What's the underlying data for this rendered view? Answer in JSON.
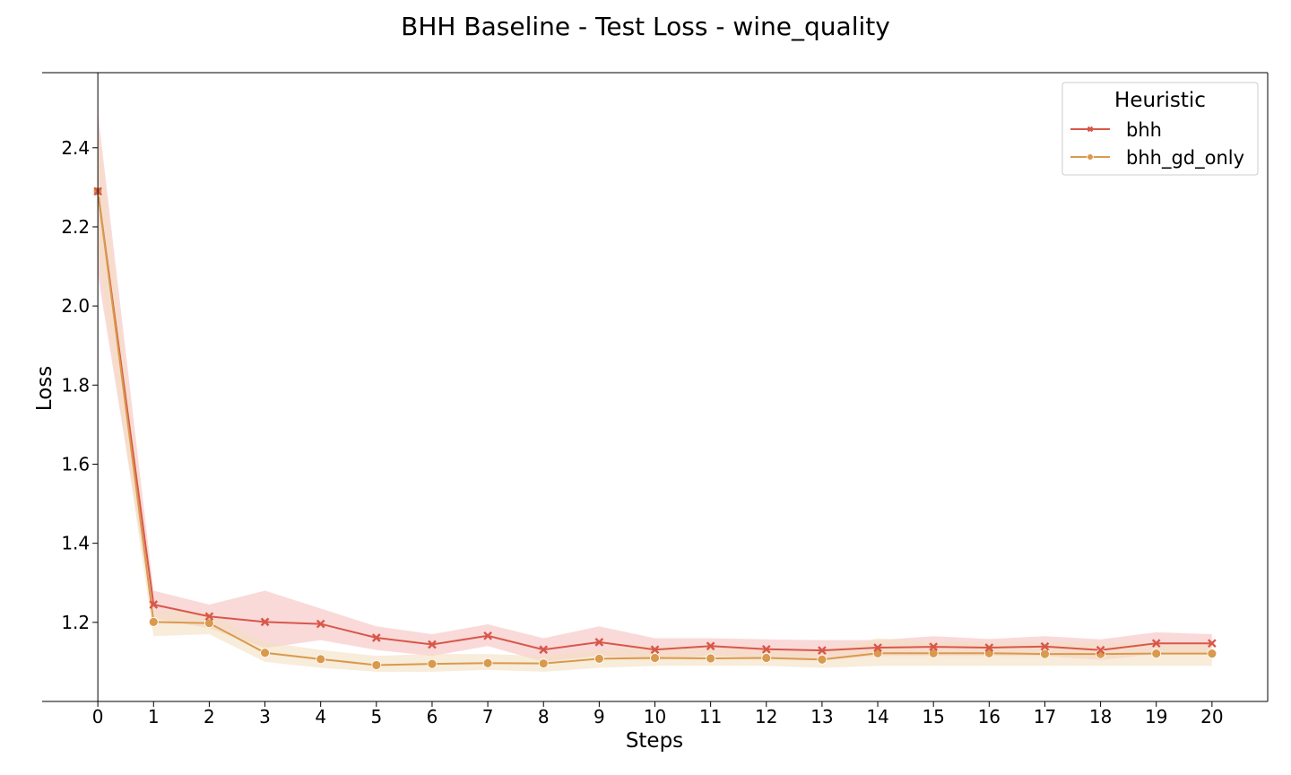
{
  "chart_data": {
    "type": "line",
    "title": "BHH Baseline - Test Loss - wine_quality",
    "xlabel": "Steps",
    "ylabel": "Loss",
    "x": [
      0,
      1,
      2,
      3,
      4,
      5,
      6,
      7,
      8,
      9,
      10,
      11,
      12,
      13,
      14,
      15,
      16,
      17,
      18,
      19,
      20
    ],
    "xticks": [
      "0",
      "1",
      "2",
      "3",
      "4",
      "5",
      "6",
      "7",
      "8",
      "9",
      "10",
      "11",
      "12",
      "13",
      "14",
      "15",
      "16",
      "17",
      "18",
      "19",
      "20"
    ],
    "xlim": [
      -1,
      21
    ],
    "ylim": [
      1.0,
      2.59
    ],
    "yticks": [
      1.2,
      1.4,
      1.6,
      1.8,
      2.0,
      2.2,
      2.4
    ],
    "ytick_labels": [
      "1.2",
      "1.4",
      "1.6",
      "1.8",
      "2.0",
      "2.2",
      "2.4"
    ],
    "legend": {
      "title": "Heuristic",
      "position": "top-right"
    },
    "grid": false,
    "series": [
      {
        "name": "bhh",
        "color": "#d9574a",
        "band_color": "#f5c2c0",
        "marker": "x",
        "values": [
          2.29,
          1.245,
          1.215,
          1.201,
          1.196,
          1.161,
          1.144,
          1.166,
          1.131,
          1.15,
          1.131,
          1.14,
          1.132,
          1.129,
          1.136,
          1.138,
          1.136,
          1.139,
          1.13,
          1.147,
          1.147
        ],
        "upper": [
          2.49,
          1.28,
          1.245,
          1.28,
          1.235,
          1.19,
          1.17,
          1.195,
          1.16,
          1.19,
          1.16,
          1.16,
          1.157,
          1.155,
          1.155,
          1.165,
          1.158,
          1.165,
          1.157,
          1.175,
          1.17
        ],
        "lower": [
          2.08,
          1.21,
          1.185,
          1.135,
          1.155,
          1.13,
          1.115,
          1.14,
          1.1,
          1.115,
          1.105,
          1.115,
          1.11,
          1.105,
          1.115,
          1.115,
          1.115,
          1.115,
          1.105,
          1.12,
          1.12
        ]
      },
      {
        "name": "bhh_gd_only",
        "color": "#d99a4e",
        "band_color": "#f3dfc1",
        "marker": "o",
        "values": [
          2.29,
          1.201,
          1.198,
          1.123,
          1.107,
          1.092,
          1.095,
          1.097,
          1.096,
          1.108,
          1.11,
          1.109,
          1.11,
          1.106,
          1.122,
          1.122,
          1.122,
          1.12,
          1.12,
          1.121,
          1.121
        ],
        "upper": [
          2.45,
          1.23,
          1.225,
          1.15,
          1.13,
          1.115,
          1.12,
          1.12,
          1.115,
          1.13,
          1.14,
          1.135,
          1.135,
          1.13,
          1.16,
          1.15,
          1.15,
          1.15,
          1.148,
          1.15,
          1.15
        ],
        "lower": [
          2.13,
          1.165,
          1.17,
          1.1,
          1.085,
          1.075,
          1.075,
          1.08,
          1.075,
          1.085,
          1.09,
          1.09,
          1.09,
          1.085,
          1.09,
          1.09,
          1.09,
          1.09,
          1.09,
          1.09,
          1.09
        ]
      }
    ]
  }
}
